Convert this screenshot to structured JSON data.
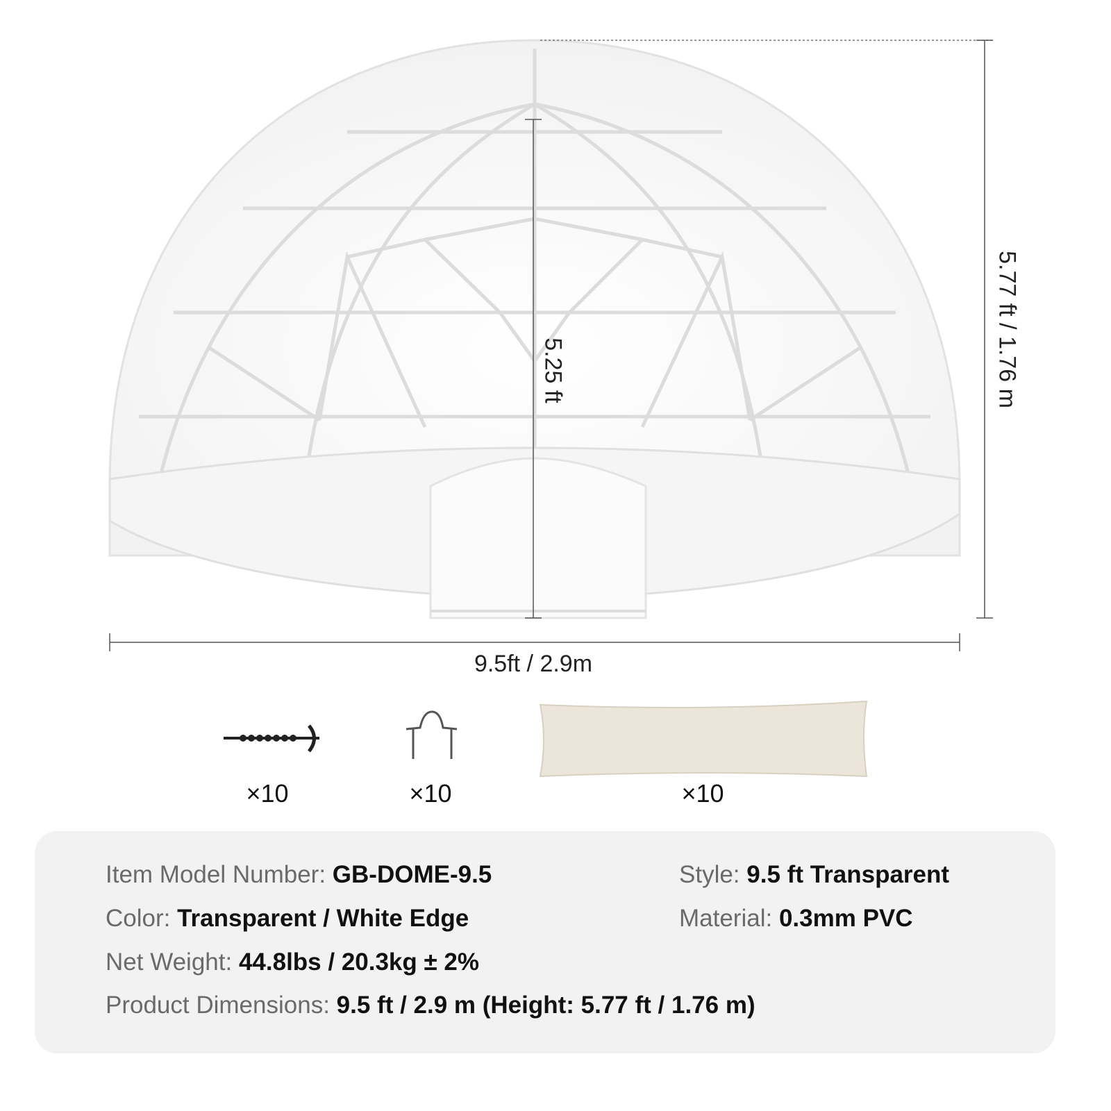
{
  "dimensions": {
    "width_label": "9.5ft / 2.9m",
    "height_label": "5.77 ft / 1.76 m",
    "door_height_label": "5.25 ft"
  },
  "accessories": [
    {
      "name": "ground-screw",
      "qty": "×10"
    },
    {
      "name": "u-staple",
      "qty": "×10"
    },
    {
      "name": "sandbag",
      "qty": "×10"
    }
  ],
  "specs": {
    "model": {
      "label": "Item Model Number:",
      "value": "GB-DOME-9.5"
    },
    "style": {
      "label": "Style:",
      "value": "9.5 ft Transparent"
    },
    "color": {
      "label": "Color:",
      "value": "Transparent / White Edge"
    },
    "material": {
      "label": "Material:",
      "value": "0.3mm PVC"
    },
    "weight": {
      "label": "Net Weight:",
      "value": "44.8lbs / 20.3kg ± 2%"
    },
    "dimensions": {
      "label": "Product Dimensions:",
      "value": "9.5 ft / 2.9 m (Height: 5.77 ft / 1.76 m)"
    }
  },
  "colors": {
    "panel_bg": "#f2f2f2",
    "label_text": "#6a6a6a",
    "value_text": "#111111",
    "sandbag": "#ece6da"
  }
}
